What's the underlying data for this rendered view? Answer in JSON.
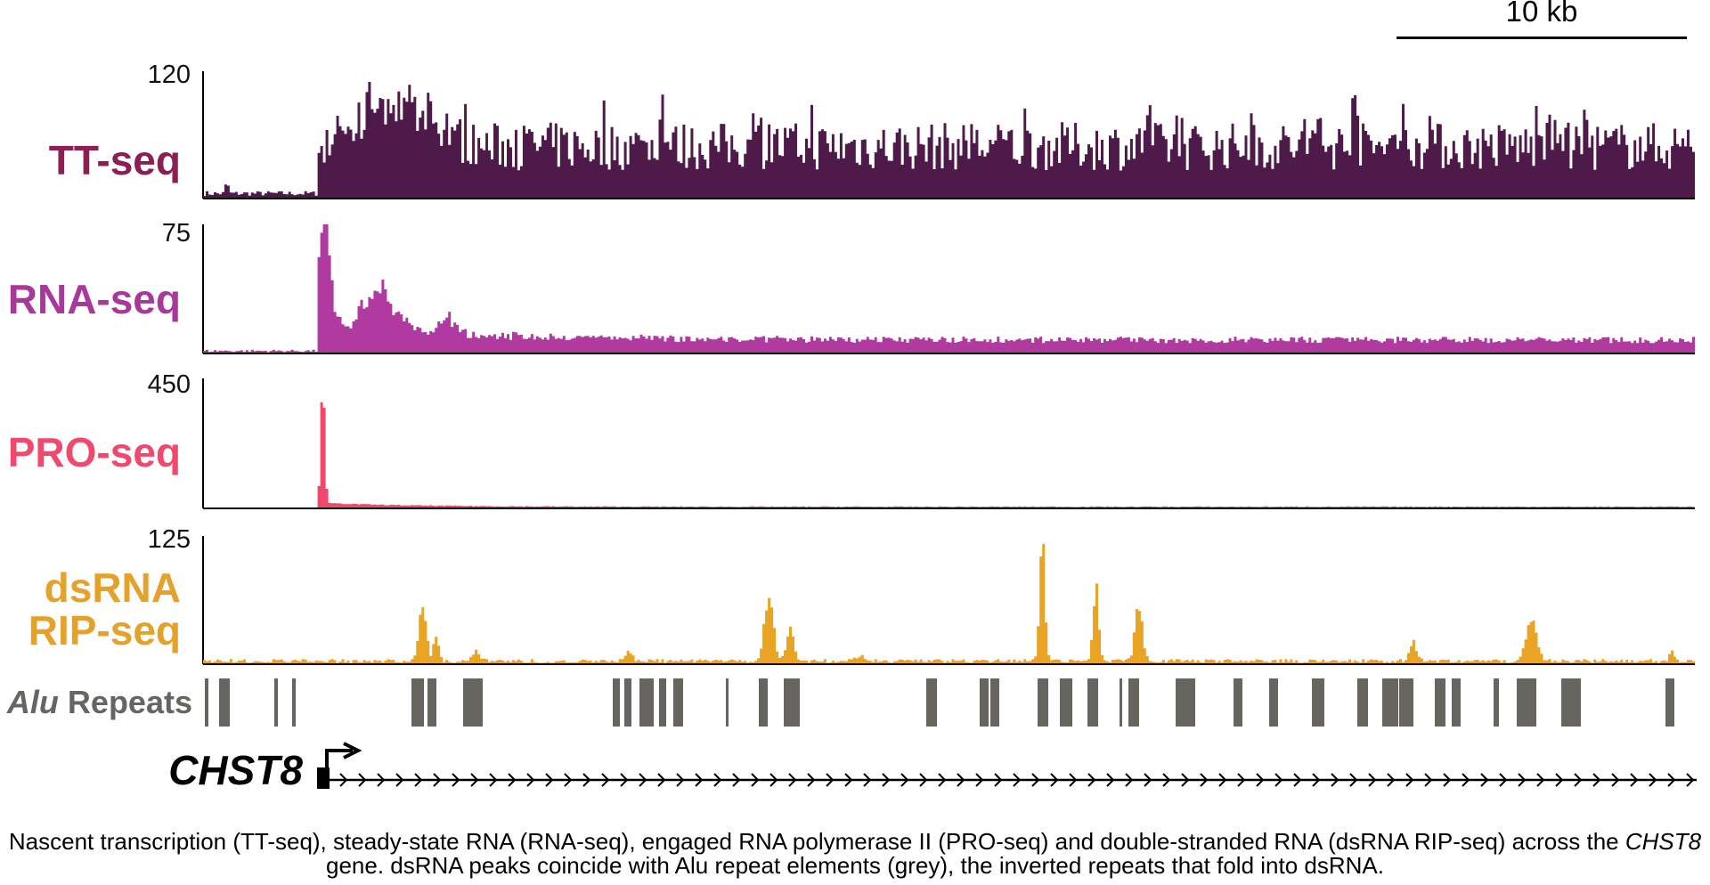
{
  "scale_bar": {
    "label": "10 kb"
  },
  "tracks": [
    {
      "id": "tt",
      "label": "TT-seq",
      "ymax": "120",
      "color": "#4d1a4a",
      "label_color": "#8b1e52"
    },
    {
      "id": "rna",
      "label": "RNA-seq",
      "ymax": "75",
      "color": "#b03a9f",
      "label_color": "#a8399b"
    },
    {
      "id": "pro",
      "label": "PRO-seq",
      "ymax": "450",
      "color": "#f1476a",
      "label_color": "#f0496d"
    },
    {
      "id": "ds",
      "label_line1": "dsRNA",
      "label_line2": "RIP-seq",
      "ymax": "125",
      "color": "#e8a422",
      "label_color": "#e4a22a"
    }
  ],
  "alu": {
    "label_italic": "Alu",
    "label_rest": " Repeats",
    "color": "#666560"
  },
  "gene": {
    "name": "CHST8"
  },
  "caption": {
    "part1": "Nascent transcription (TT-seq), steady-state RNA (RNA-seq), engaged RNA polymerase II (PRO-seq) and double-stranded RNA (dsRNA RIP-seq) across the ",
    "gene": "CHST8",
    "part2": " gene. dsRNA peaks coincide with Alu repeat elements (grey), the inverted repeats that fold into dsRNA."
  }
}
